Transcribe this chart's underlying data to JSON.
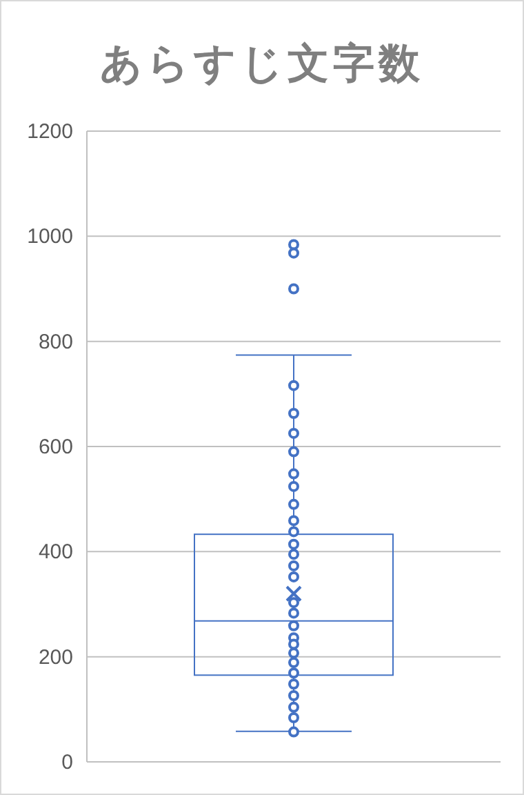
{
  "chart_data": {
    "type": "box",
    "title": "あらすじ文字数",
    "categories": [
      null
    ],
    "boxes": [
      {
        "low": 58,
        "q1": 165,
        "median": 268,
        "q3": 433,
        "high": 774,
        "mean": 320,
        "outliers": [
          984,
          968,
          900
        ]
      }
    ],
    "series": [
      {
        "type": "scatter",
        "color": "#4472c4",
        "marker": "circle",
        "x": [
          null,
          null,
          null,
          null,
          null,
          null,
          null,
          null,
          null,
          null,
          null,
          null,
          null,
          null,
          null,
          null,
          null,
          null,
          null,
          null,
          null,
          null,
          null,
          null,
          null,
          null,
          null
        ],
        "values": [
          716,
          663,
          625,
          590,
          548,
          524,
          490,
          459,
          438,
          414,
          395,
          373,
          352,
          null,
          303,
          283,
          259,
          236,
          224,
          207,
          189,
          169,
          148,
          126,
          104,
          84,
          57
        ]
      }
    ],
    "color": "#4472c4",
    "ylim": [
      0,
      1200
    ],
    "yticks": [
      0,
      200,
      400,
      600,
      800,
      1000,
      1200
    ],
    "grid": "y"
  }
}
